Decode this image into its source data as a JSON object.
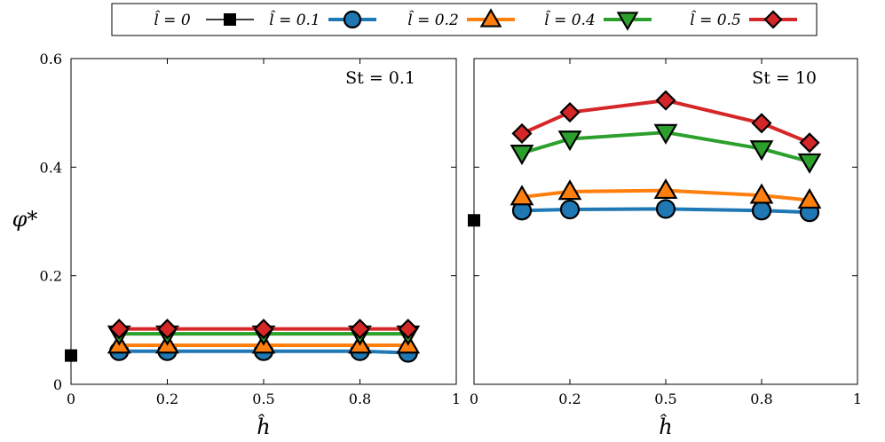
{
  "chart_data": [
    {
      "type": "line",
      "annotation": "St = 0.1",
      "xlabel": "ĥ",
      "ylabel": "φ*",
      "xlim": [
        0,
        1
      ],
      "ylim": [
        0,
        0.6
      ],
      "xticks": [
        "0",
        "0.2",
        "0.5",
        "0.8",
        "1"
      ],
      "yticks": [
        "0",
        "0.2",
        "0.4",
        "0.6"
      ],
      "grid": false,
      "series": [
        {
          "name": "l̂ = 0",
          "color": "#000000",
          "marker": "square",
          "x": [
            0
          ],
          "y": [
            0.053
          ]
        },
        {
          "name": "l̂ = 0.1",
          "color": "#1f77b4",
          "marker": "circle",
          "x": [
            0.1,
            0.2,
            0.5,
            0.8,
            0.9
          ],
          "y": [
            0.061,
            0.061,
            0.061,
            0.061,
            0.058
          ]
        },
        {
          "name": "l̂ = 0.2",
          "color": "#ff7f0e",
          "marker": "triangle-up",
          "x": [
            0.1,
            0.2,
            0.5,
            0.8,
            0.9
          ],
          "y": [
            0.072,
            0.072,
            0.072,
            0.072,
            0.072
          ]
        },
        {
          "name": "l̂ = 0.4",
          "color": "#2ca02c",
          "marker": "triangle-down",
          "x": [
            0.1,
            0.2,
            0.5,
            0.8,
            0.9
          ],
          "y": [
            0.093,
            0.093,
            0.093,
            0.093,
            0.093
          ]
        },
        {
          "name": "l̂ = 0.5",
          "color": "#d62728",
          "marker": "diamond",
          "x": [
            0.1,
            0.2,
            0.5,
            0.8,
            0.9
          ],
          "y": [
            0.102,
            0.102,
            0.102,
            0.102,
            0.102
          ]
        }
      ]
    },
    {
      "type": "line",
      "annotation": "St = 10",
      "xlabel": "ĥ",
      "ylabel": "",
      "xlim": [
        0,
        1
      ],
      "ylim": [
        0,
        0.6
      ],
      "xticks": [
        "0",
        "0.2",
        "0.5",
        "0.8",
        "1"
      ],
      "yticks": [],
      "grid": false,
      "series": [
        {
          "name": "l̂ = 0",
          "color": "#000000",
          "marker": "square",
          "x": [
            0
          ],
          "y": [
            0.302
          ]
        },
        {
          "name": "l̂ = 0.1",
          "color": "#1f77b4",
          "marker": "circle",
          "x": [
            0.1,
            0.2,
            0.5,
            0.8,
            0.9
          ],
          "y": [
            0.32,
            0.322,
            0.323,
            0.32,
            0.317
          ]
        },
        {
          "name": "l̂ = 0.2",
          "color": "#ff7f0e",
          "marker": "triangle-up",
          "x": [
            0.1,
            0.2,
            0.5,
            0.8,
            0.9
          ],
          "y": [
            0.345,
            0.355,
            0.357,
            0.348,
            0.339
          ]
        },
        {
          "name": "l̂ = 0.4",
          "color": "#2ca02c",
          "marker": "triangle-down",
          "x": [
            0.1,
            0.2,
            0.5,
            0.8,
            0.9
          ],
          "y": [
            0.426,
            0.452,
            0.464,
            0.434,
            0.41
          ]
        },
        {
          "name": "l̂ = 0.5",
          "color": "#d62728",
          "marker": "diamond",
          "x": [
            0.1,
            0.2,
            0.5,
            0.8,
            0.9
          ],
          "y": [
            0.462,
            0.501,
            0.523,
            0.481,
            0.445
          ]
        }
      ]
    }
  ],
  "legend": {
    "placement": "top",
    "items": [
      {
        "label": "l̂ = 0",
        "color": "#000000",
        "marker": "square"
      },
      {
        "label": "l̂ = 0.1",
        "color": "#1f77b4",
        "marker": "circle"
      },
      {
        "label": "l̂ = 0.2",
        "color": "#ff7f0e",
        "marker": "triangle-up"
      },
      {
        "label": "l̂ = 0.4",
        "color": "#2ca02c",
        "marker": "triangle-down"
      },
      {
        "label": "l̂ = 0.5",
        "color": "#d62728",
        "marker": "diamond"
      }
    ]
  }
}
